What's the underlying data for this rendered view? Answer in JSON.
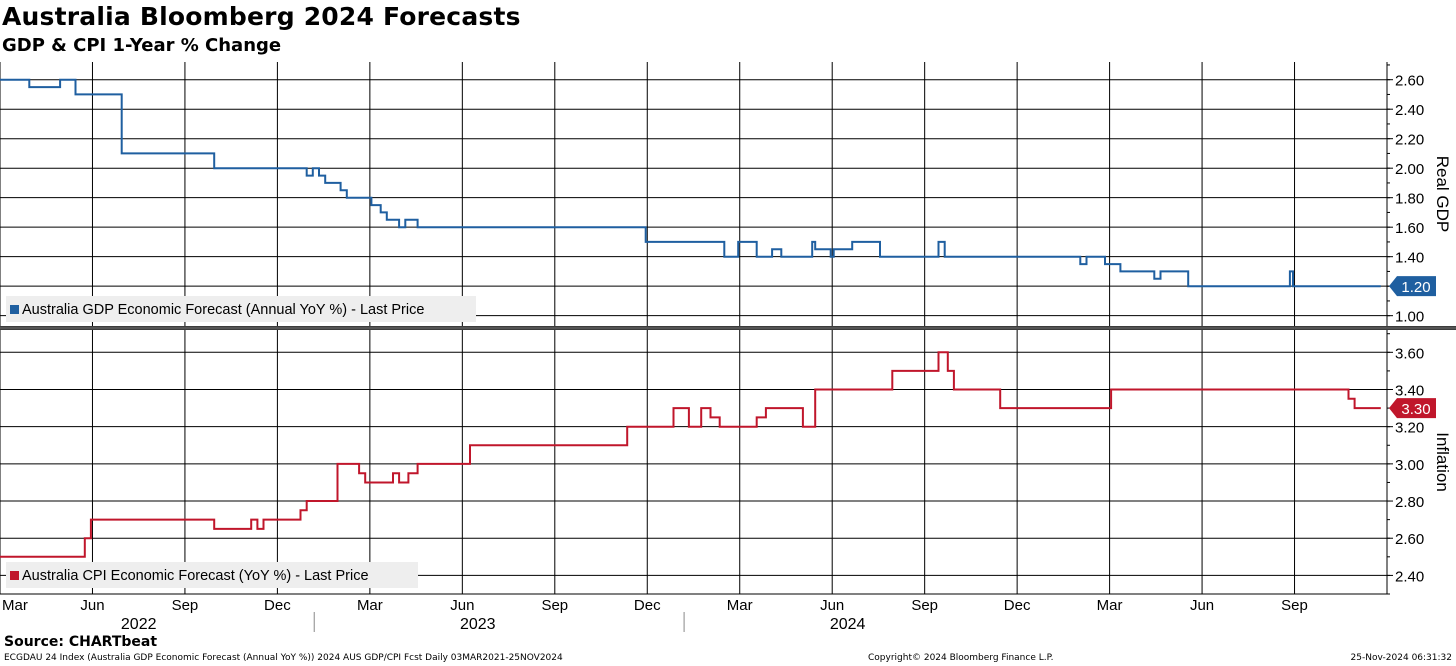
{
  "header": {
    "title": "Australia Bloomberg 2024 Forecasts",
    "subtitle": "GDP & CPI 1-Year % Change"
  },
  "footer": {
    "source": "Source: CHARTbeat",
    "index_text": "ECGDAU 24 Index (Australia GDP Economic Forecast (Annual YoY %)) 2024 AUS GDP/CPI Fcst  Daily 03MAR2021-25NOV2024",
    "copyright": "Copyright© 2024 Bloomberg Finance L.P.",
    "timestamp": "25-Nov-2024 06:31:32"
  },
  "colors": {
    "gdp": "#1f5fa0",
    "cpi": "#c0162b",
    "grid": "#000000"
  },
  "chart_data": [
    {
      "type": "line",
      "panel": "top",
      "ylabel": "Real GDP",
      "ylim": [
        0.93,
        2.72
      ],
      "yticks": [
        1.0,
        1.2,
        1.4,
        1.6,
        1.8,
        2.0,
        2.2,
        2.4,
        2.6
      ],
      "ytick_labels": [
        "1.00",
        "1.20",
        "1.40",
        "1.60",
        "1.80",
        "2.00",
        "2.20",
        "2.40",
        "2.60"
      ],
      "legend": "Australia GDP Economic Forecast (Annual YoY %) - Last Price",
      "last_value_label": "1.20",
      "x_unit": "months since 1-Mar-2021",
      "series": [
        {
          "name": "Australia GDP Economic Forecast (Annual YoY %) - Last Price",
          "points": [
            [
              0.0,
              2.6
            ],
            [
              0.95,
              2.6
            ],
            [
              0.95,
              2.55
            ],
            [
              1.95,
              2.55
            ],
            [
              1.95,
              2.6
            ],
            [
              2.45,
              2.6
            ],
            [
              2.45,
              2.5
            ],
            [
              3.95,
              2.5
            ],
            [
              3.95,
              2.1
            ],
            [
              6.95,
              2.1
            ],
            [
              6.95,
              2.0
            ],
            [
              9.95,
              2.0
            ],
            [
              9.95,
              1.95
            ],
            [
              10.15,
              1.95
            ],
            [
              10.15,
              2.0
            ],
            [
              10.35,
              2.0
            ],
            [
              10.35,
              1.95
            ],
            [
              10.55,
              1.95
            ],
            [
              10.55,
              1.9
            ],
            [
              11.05,
              1.9
            ],
            [
              11.05,
              1.85
            ],
            [
              11.25,
              1.85
            ],
            [
              11.25,
              1.8
            ],
            [
              12.05,
              1.8
            ],
            [
              12.05,
              1.75
            ],
            [
              12.35,
              1.75
            ],
            [
              12.35,
              1.7
            ],
            [
              12.55,
              1.7
            ],
            [
              12.55,
              1.65
            ],
            [
              12.95,
              1.65
            ],
            [
              12.95,
              1.6
            ],
            [
              13.15,
              1.6
            ],
            [
              13.15,
              1.65
            ],
            [
              13.55,
              1.65
            ],
            [
              13.55,
              1.6
            ],
            [
              20.95,
              1.6
            ],
            [
              20.95,
              1.5
            ],
            [
              23.5,
              1.5
            ],
            [
              23.5,
              1.4
            ],
            [
              23.95,
              1.4
            ],
            [
              23.95,
              1.5
            ],
            [
              24.55,
              1.5
            ],
            [
              24.55,
              1.4
            ],
            [
              25.05,
              1.4
            ],
            [
              25.05,
              1.45
            ],
            [
              25.35,
              1.45
            ],
            [
              25.35,
              1.4
            ],
            [
              26.35,
              1.4
            ],
            [
              26.35,
              1.5
            ],
            [
              26.45,
              1.5
            ],
            [
              26.45,
              1.45
            ],
            [
              26.95,
              1.45
            ],
            [
              26.95,
              1.4
            ],
            [
              27.05,
              1.4
            ],
            [
              27.05,
              1.45
            ],
            [
              27.65,
              1.45
            ],
            [
              27.65,
              1.5
            ],
            [
              28.55,
              1.5
            ],
            [
              28.55,
              1.4
            ],
            [
              30.45,
              1.4
            ],
            [
              30.45,
              1.5
            ],
            [
              30.65,
              1.5
            ],
            [
              30.65,
              1.4
            ],
            [
              35.05,
              1.4
            ],
            [
              35.05,
              1.35
            ],
            [
              35.25,
              1.35
            ],
            [
              35.25,
              1.4
            ],
            [
              35.85,
              1.4
            ],
            [
              35.85,
              1.35
            ],
            [
              36.35,
              1.35
            ],
            [
              36.35,
              1.3
            ],
            [
              37.45,
              1.3
            ],
            [
              37.45,
              1.25
            ],
            [
              37.65,
              1.25
            ],
            [
              37.65,
              1.3
            ],
            [
              38.55,
              1.3
            ],
            [
              38.55,
              1.2
            ],
            [
              41.85,
              1.2
            ],
            [
              41.85,
              1.3
            ],
            [
              41.95,
              1.3
            ],
            [
              41.95,
              1.2
            ],
            [
              44.8,
              1.2
            ]
          ]
        }
      ]
    },
    {
      "type": "line",
      "panel": "bottom",
      "ylabel": "Inflation",
      "ylim": [
        2.3,
        3.72
      ],
      "yticks": [
        2.4,
        2.6,
        2.8,
        3.0,
        3.2,
        3.4,
        3.6
      ],
      "ytick_labels": [
        "2.40",
        "2.60",
        "2.80",
        "3.00",
        "3.20",
        "3.40",
        "3.60"
      ],
      "legend": "Australia CPI Economic Forecast (YoY %) - Last Price",
      "last_value_label": "3.30",
      "x_unit": "months since 1-Mar-2021",
      "series": [
        {
          "name": "Australia CPI Economic Forecast (YoY %) - Last Price",
          "points": [
            [
              0.0,
              2.5
            ],
            [
              2.75,
              2.5
            ],
            [
              2.75,
              2.6
            ],
            [
              2.95,
              2.6
            ],
            [
              2.95,
              2.7
            ],
            [
              6.95,
              2.7
            ],
            [
              6.95,
              2.65
            ],
            [
              8.15,
              2.65
            ],
            [
              8.15,
              2.7
            ],
            [
              8.35,
              2.7
            ],
            [
              8.35,
              2.65
            ],
            [
              8.55,
              2.65
            ],
            [
              8.55,
              2.7
            ],
            [
              9.75,
              2.7
            ],
            [
              9.75,
              2.75
            ],
            [
              9.95,
              2.75
            ],
            [
              9.95,
              2.8
            ],
            [
              10.95,
              2.8
            ],
            [
              10.95,
              3.0
            ],
            [
              11.65,
              3.0
            ],
            [
              11.65,
              2.95
            ],
            [
              11.85,
              2.95
            ],
            [
              11.85,
              2.9
            ],
            [
              12.75,
              2.9
            ],
            [
              12.75,
              2.95
            ],
            [
              12.95,
              2.95
            ],
            [
              12.95,
              2.9
            ],
            [
              13.25,
              2.9
            ],
            [
              13.25,
              2.95
            ],
            [
              13.55,
              2.95
            ],
            [
              13.55,
              3.0
            ],
            [
              15.25,
              3.0
            ],
            [
              15.25,
              3.1
            ],
            [
              20.35,
              3.1
            ],
            [
              20.35,
              3.2
            ],
            [
              21.85,
              3.2
            ],
            [
              21.85,
              3.3
            ],
            [
              22.35,
              3.3
            ],
            [
              22.35,
              3.2
            ],
            [
              22.75,
              3.2
            ],
            [
              22.75,
              3.3
            ],
            [
              23.05,
              3.3
            ],
            [
              23.05,
              3.25
            ],
            [
              23.35,
              3.25
            ],
            [
              23.35,
              3.2
            ],
            [
              24.55,
              3.2
            ],
            [
              24.55,
              3.25
            ],
            [
              24.85,
              3.25
            ],
            [
              24.85,
              3.3
            ],
            [
              26.05,
              3.3
            ],
            [
              26.05,
              3.2
            ],
            [
              26.45,
              3.2
            ],
            [
              26.45,
              3.4
            ],
            [
              28.95,
              3.4
            ],
            [
              28.95,
              3.5
            ],
            [
              30.45,
              3.5
            ],
            [
              30.45,
              3.6
            ],
            [
              30.75,
              3.6
            ],
            [
              30.75,
              3.5
            ],
            [
              30.95,
              3.5
            ],
            [
              30.95,
              3.4
            ],
            [
              32.45,
              3.4
            ],
            [
              32.45,
              3.3
            ],
            [
              36.05,
              3.3
            ],
            [
              36.05,
              3.4
            ],
            [
              43.75,
              3.4
            ],
            [
              43.75,
              3.35
            ],
            [
              43.95,
              3.35
            ],
            [
              43.95,
              3.3
            ],
            [
              44.8,
              3.3
            ]
          ]
        }
      ]
    }
  ],
  "x_axis": {
    "x_range": [
      0,
      45
    ],
    "month_ticks": [
      {
        "m": 0,
        "label": "Mar"
      },
      {
        "m": 3,
        "label": "Jun"
      },
      {
        "m": 6,
        "label": "Sep"
      },
      {
        "m": 9,
        "label": "Dec"
      },
      {
        "m": 12,
        "label": "Mar"
      },
      {
        "m": 15,
        "label": "Jun"
      },
      {
        "m": 18,
        "label": "Sep"
      },
      {
        "m": 21,
        "label": "Dec"
      },
      {
        "m": 24,
        "label": "Mar"
      },
      {
        "m": 27,
        "label": "Jun"
      },
      {
        "m": 30,
        "label": "Sep"
      },
      {
        "m": 33,
        "label": "Dec"
      },
      {
        "m": 36,
        "label": "Mar"
      },
      {
        "m": 39,
        "label": "Jun"
      },
      {
        "m": 42,
        "label": "Sep"
      }
    ],
    "years": [
      {
        "center": 4.5,
        "label": "2022"
      },
      {
        "center": 15.5,
        "label": "2023"
      },
      {
        "center": 27.5,
        "label": "2024"
      }
    ],
    "year_separators": [
      10,
      22
    ]
  }
}
